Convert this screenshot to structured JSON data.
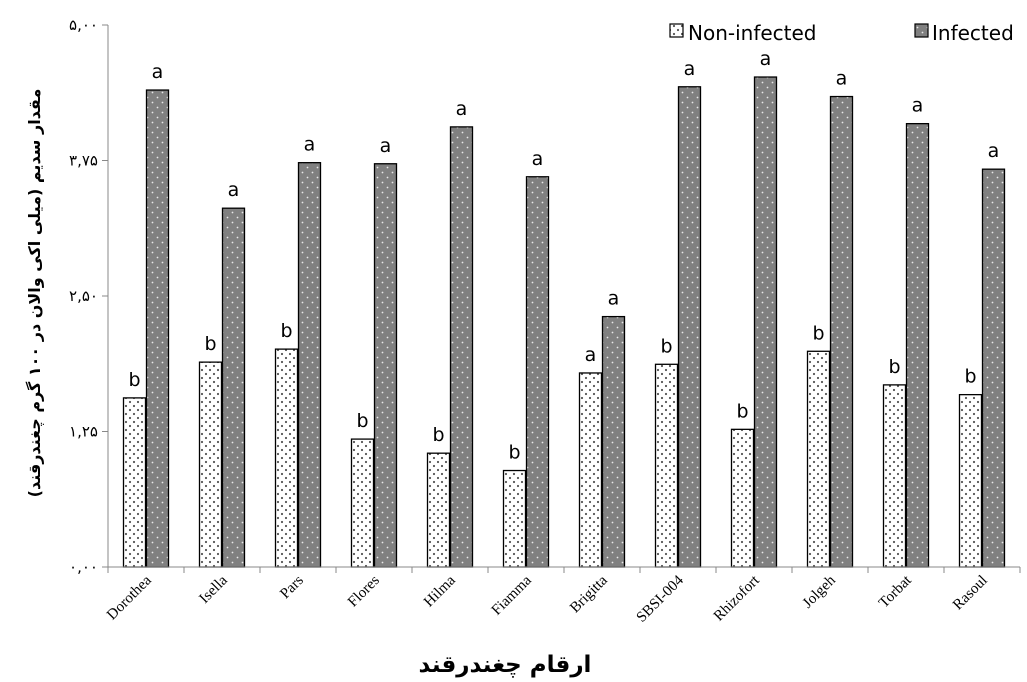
{
  "chart_data": {
    "type": "bar",
    "title": "",
    "xlabel": "ارقام چغندرقند",
    "ylabel": "مقدار سدیم (میلی اکی والان در ۱۰۰ گرم چغندرقند)",
    "ylim": [
      0,
      5
    ],
    "yticks": [
      0,
      1.25,
      2.5,
      3.75,
      5
    ],
    "ytick_labels": [
      "۰,۰۰",
      "۱,۲۵",
      "۲,۵۰",
      "۳,۷۵",
      "۵,۰۰"
    ],
    "grid": false,
    "legend_position": "top-right",
    "categories": [
      "Dorothea",
      "Isella",
      "Pars",
      "Flores",
      "Hilma",
      "Fiamma",
      "Brigitta",
      "SBSI-004",
      "Rhizofort",
      "Jolgeh",
      "Torbat",
      "Rasoul"
    ],
    "series": [
      {
        "name": "Non-infected",
        "color": "#ffffff",
        "values": [
          1.56,
          1.89,
          2.01,
          1.18,
          1.05,
          0.89,
          1.79,
          1.87,
          1.27,
          1.99,
          1.68,
          1.59
        ],
        "letters": [
          "b",
          "b",
          "b",
          "b",
          "b",
          "b",
          "a",
          "b",
          "b",
          "b",
          "b",
          "b"
        ]
      },
      {
        "name": "Infected",
        "color": "#808080",
        "values": [
          4.4,
          3.31,
          3.73,
          3.72,
          4.06,
          3.6,
          2.31,
          4.43,
          4.52,
          4.34,
          4.09,
          3.67
        ],
        "letters": [
          "a",
          "a",
          "a",
          "a",
          "a",
          "a",
          "a",
          "a",
          "a",
          "a",
          "a",
          "a"
        ]
      }
    ]
  }
}
